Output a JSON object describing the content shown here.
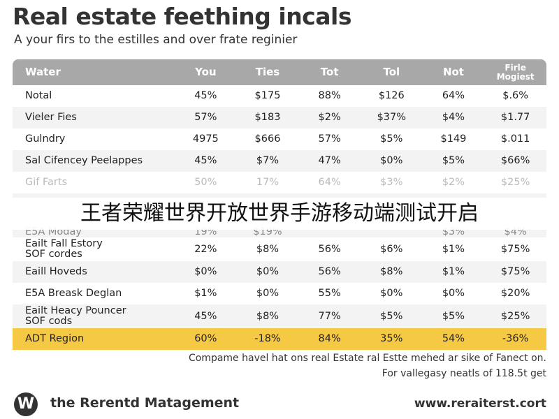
{
  "header": {
    "title": "Real estate feething incals",
    "subtitle": "A your firs to the estilles and over frate reginier"
  },
  "table": {
    "columns": [
      "Water",
      "You",
      "Ties",
      "Tot",
      "Tol",
      "Not",
      "Firle\nMogiest"
    ],
    "rows": [
      [
        "Notal",
        "45%",
        "$175",
        "88%",
        "$126",
        "64%",
        "$.6%"
      ],
      [
        "Vieler Fies",
        "57%",
        "$183",
        "$2%",
        "$37%",
        "$4%",
        "$1.77"
      ],
      [
        "Gulndry",
        "4975",
        "$666",
        "57%",
        "$5%",
        "$149",
        "$.011"
      ],
      [
        "Sal Cifencey Peelappes",
        "45%",
        "$7%",
        "47%",
        "$0%",
        "$5%",
        "$66%"
      ],
      [
        "Gif Farts",
        "50%",
        "17%",
        "64%",
        "$3%",
        "$2%",
        "$25%"
      ],
      [
        "E5A Moday",
        "19%",
        "$19%",
        null,
        null,
        "$3%",
        "$4%"
      ],
      [
        "Eailt Fall Estory\nSOF cordes",
        "22%",
        "$8%",
        "56%",
        "$6%",
        "$1%",
        "$75%"
      ],
      [
        "Eaill Hoveds",
        "$0%",
        "$0%",
        "56%",
        "$8%",
        "$1%",
        "$75%"
      ],
      [
        "E5A Breask Deglan",
        "$1%",
        "$0%",
        "55%",
        "$0%",
        "$0%",
        "$20%"
      ],
      [
        "Eailt Heacy Pouncer\nSOF cods",
        "45%",
        "$8%",
        "77%",
        "$5%",
        "$5%",
        "$25%"
      ],
      [
        "ADT Region",
        "60%",
        "-18%",
        "84%",
        "35%",
        "54%",
        "-36%"
      ]
    ]
  },
  "overlay": {
    "text": "王者荣耀世界开放世界手游移动端测试开启"
  },
  "notes": [
    "Compame havel hat ons real Estate ral Estte mehed ar sike of Fanect on.",
    "For vallegasy neatls of 118.5t get"
  ],
  "footer": {
    "logo": "W",
    "brand": "the Rerentd Matagement",
    "url": "www.reraiterst.cort"
  }
}
